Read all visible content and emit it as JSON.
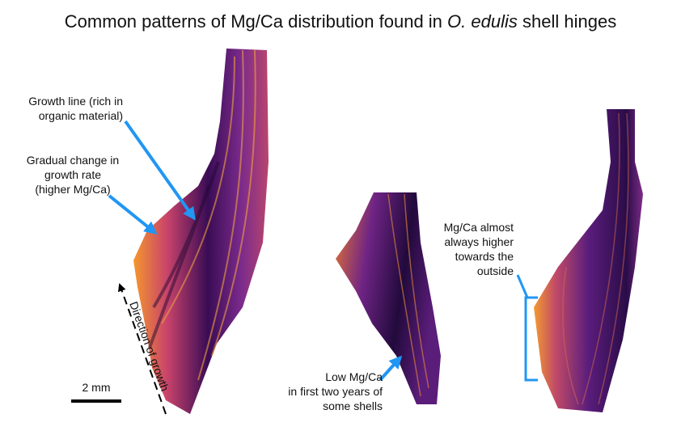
{
  "title": {
    "prefix": "Common patterns of Mg/Ca distribution found in",
    "species": "O. edulis",
    "suffix": "shell hinges"
  },
  "annotations": {
    "growth_line": [
      "Growth line (rich in",
      "organic material)"
    ],
    "gradual_change": [
      "Gradual change in",
      "growth rate",
      "(higher Mg/Ca)"
    ],
    "outside": [
      "Mg/Ca almost",
      "always higher",
      "towards the",
      "outside"
    ],
    "low": [
      "Low Mg/Ca",
      "in first two years of",
      "some shells"
    ]
  },
  "direction": "Direction of growth",
  "scale_bar": "2 mm"
}
